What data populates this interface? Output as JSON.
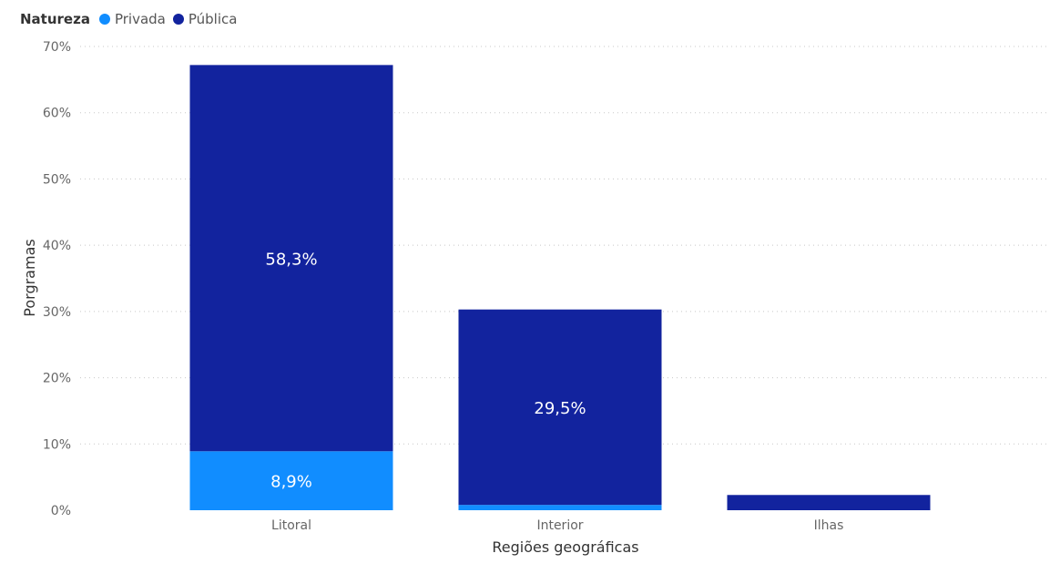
{
  "legend": {
    "title": "Natureza",
    "items": [
      {
        "name": "Privada",
        "color": "#118DFF"
      },
      {
        "name": "Pública",
        "color": "#12239E"
      }
    ]
  },
  "chart_data": {
    "type": "bar",
    "stacked": true,
    "categories": [
      "Litoral",
      "Interior",
      "Ilhas"
    ],
    "series": [
      {
        "name": "Privada",
        "color": "#118DFF",
        "values": [
          8.9,
          0.8,
          0.0
        ],
        "labels": [
          "8,9%",
          "",
          ""
        ]
      },
      {
        "name": "Pública",
        "color": "#12239E",
        "values": [
          58.3,
          29.5,
          2.3
        ],
        "labels": [
          "58,3%",
          "29,5%",
          ""
        ]
      }
    ],
    "xlabel": "Regiões geográficas",
    "ylabel": "Porgramas",
    "ylim": [
      0,
      70
    ],
    "yticks": [
      {
        "value": 0,
        "label": "0%"
      },
      {
        "value": 10,
        "label": "10%"
      },
      {
        "value": 20,
        "label": "20%"
      },
      {
        "value": 30,
        "label": "30%"
      },
      {
        "value": 40,
        "label": "40%"
      },
      {
        "value": 50,
        "label": "50%"
      },
      {
        "value": 60,
        "label": "60%"
      },
      {
        "value": 70,
        "label": "70%"
      }
    ],
    "grid": true,
    "legend_position": "top-left"
  }
}
